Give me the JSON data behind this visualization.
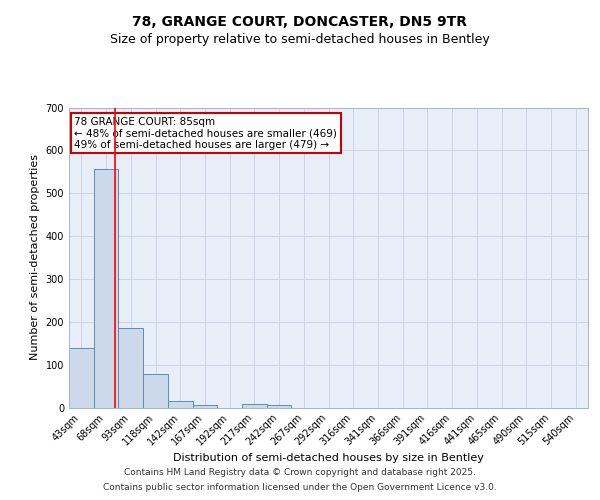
{
  "title1": "78, GRANGE COURT, DONCASTER, DN5 9TR",
  "title2": "Size of property relative to semi-detached houses in Bentley",
  "xlabel": "Distribution of semi-detached houses by size in Bentley",
  "ylabel": "Number of semi-detached properties",
  "bin_labels": [
    "43sqm",
    "68sqm",
    "93sqm",
    "118sqm",
    "142sqm",
    "167sqm",
    "192sqm",
    "217sqm",
    "242sqm",
    "267sqm",
    "292sqm",
    "316sqm",
    "341sqm",
    "366sqm",
    "391sqm",
    "416sqm",
    "441sqm",
    "465sqm",
    "490sqm",
    "515sqm",
    "540sqm"
  ],
  "bar_values": [
    140,
    557,
    185,
    78,
    15,
    5,
    0,
    8,
    5,
    0,
    0,
    0,
    0,
    0,
    0,
    0,
    0,
    0,
    0,
    0,
    0
  ],
  "bar_color": "#ccd9ea",
  "bar_edge_color": "#5b8db8",
  "grid_color": "#c8d4e8",
  "background_color": "#e8eef8",
  "red_line_x": 1.35,
  "annotation_text": "78 GRANGE COURT: 85sqm\n← 48% of semi-detached houses are smaller (469)\n49% of semi-detached houses are larger (479) →",
  "annotation_box_color": "#ffffff",
  "annotation_border_color": "#cc0000",
  "ylim": [
    0,
    700
  ],
  "footer1": "Contains HM Land Registry data © Crown copyright and database right 2025.",
  "footer2": "Contains public sector information licensed under the Open Government Licence v3.0.",
  "title_fontsize": 10,
  "subtitle_fontsize": 9,
  "axis_label_fontsize": 8,
  "tick_fontsize": 7,
  "annotation_fontsize": 7.5,
  "footer_fontsize": 6.5
}
